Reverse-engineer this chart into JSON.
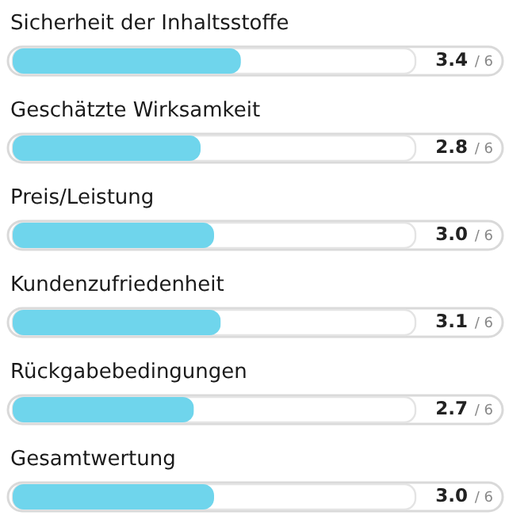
{
  "chart_data": {
    "type": "bar",
    "orientation": "horizontal",
    "categories": [
      "Sicherheit der Inhaltsstoffe",
      "Geschätzte Wirksamkeit",
      "Preis/Leistung",
      "Kundenzufriedenheit",
      "Rückgabebedingungen",
      "Gesamtwertung"
    ],
    "values": [
      3.4,
      2.8,
      3.0,
      3.1,
      2.7,
      3.0
    ],
    "value_labels": [
      "3.4",
      "2.8",
      "3.0",
      "3.1",
      "2.7",
      "3.0"
    ],
    "annotations": [
      "/ 6",
      "/ 6",
      "/ 6",
      "/ 6",
      "/ 6",
      "/ 6"
    ],
    "color": "#6fd5ec",
    "xlim": [
      0,
      6
    ],
    "tick_labels": "y",
    "grid": false
  }
}
